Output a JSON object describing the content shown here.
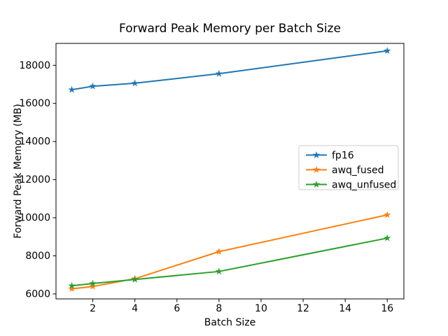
{
  "figure": {
    "background": "#ffffff",
    "spine_color": "#000000",
    "legend_border_color": "#cccccc",
    "legend_background": "#ffffff"
  },
  "chart_data": {
    "type": "line",
    "title": "Forward Peak Memory per Batch Size",
    "xlabel": "Batch Size",
    "ylabel": "Forward Peak Memory (MB)",
    "x": [
      1,
      2,
      4,
      8,
      16
    ],
    "series": [
      {
        "name": "fp16",
        "color": "#1f77b4",
        "values": [
          16720,
          16900,
          17060,
          17560,
          18760
        ]
      },
      {
        "name": "awq_fused",
        "color": "#ff7f0e",
        "values": [
          6270,
          6390,
          6800,
          8220,
          10150
        ]
      },
      {
        "name": "awq_unfused",
        "color": "#2ca02c",
        "values": [
          6430,
          6550,
          6760,
          7180,
          8930
        ]
      }
    ],
    "xticks": [
      2,
      4,
      6,
      8,
      10,
      12,
      14,
      16
    ],
    "yticks": [
      6000,
      8000,
      10000,
      12000,
      14000,
      16000,
      18000
    ],
    "xlim": [
      0.25,
      16.79
    ],
    "ylim": [
      5740,
      19150
    ],
    "marker": "star",
    "grid": false,
    "legend": {
      "position": "center-right",
      "entries": [
        "fp16",
        "awq_fused",
        "awq_unfused"
      ]
    }
  }
}
